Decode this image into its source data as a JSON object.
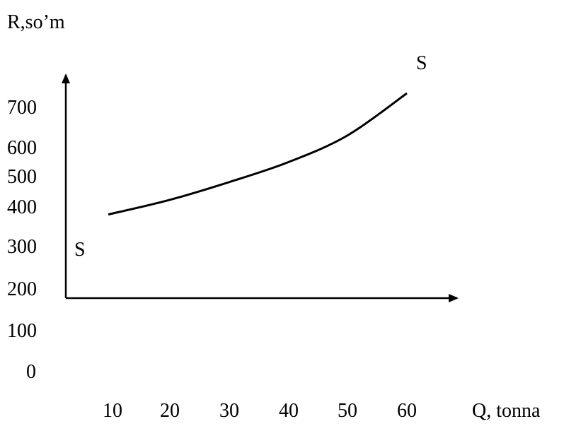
{
  "chart_data": {
    "type": "line",
    "ylabel": "R,so’m",
    "xlabel": "Q, tonna",
    "y_ticks": [
      "700",
      "600",
      "500",
      "400",
      "300",
      "200",
      "100",
      "0"
    ],
    "x_ticks": [
      "10",
      "20",
      "30",
      "40",
      "50",
      "60"
    ],
    "series": [
      {
        "name": "S",
        "x": [
          10,
          20,
          30,
          40,
          50,
          60
        ],
        "y": [
          380,
          420,
          480,
          550,
          630,
          730
        ]
      }
    ],
    "curve_label_start": "S",
    "curve_label_end": "S",
    "grid": false,
    "legend": "none",
    "colors": {
      "line": "#000000",
      "axis": "#000000"
    }
  }
}
